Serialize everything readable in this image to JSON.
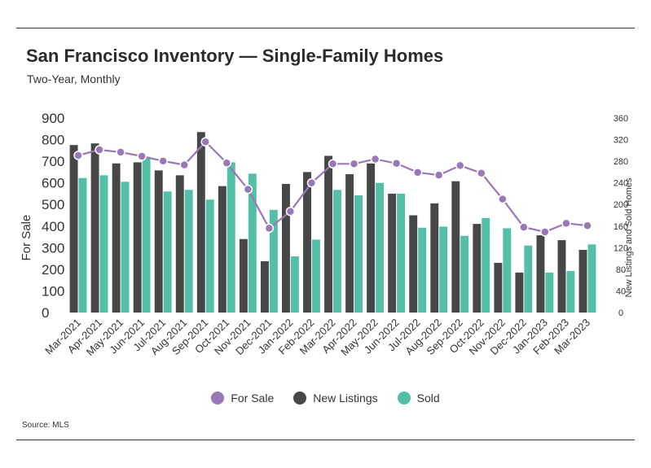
{
  "header": {
    "title": "San Francisco Inventory — Single-Family Homes",
    "subtitle": "Two-Year, Monthly"
  },
  "footer": {
    "source": "Source: MLS"
  },
  "colors": {
    "for_sale": "#9a77b5",
    "new_listings": "#474747",
    "sold": "#54bfa7"
  },
  "chart_data": {
    "type": "bar",
    "categories": [
      "Mar-2021",
      "Apr-2021",
      "May-2021",
      "Jun-2021",
      "Jul-2021",
      "Aug-2021",
      "Sep-2021",
      "Oct-2021",
      "Nov-2021",
      "Dec-2021",
      "Jan-2022",
      "Feb-2022",
      "Mar-2022",
      "Apr-2022",
      "May-2022",
      "Jun-2022",
      "Jul-2022",
      "Aug-2022",
      "Sep-2022",
      "Oct-2022",
      "Nov-2022",
      "Dec-2022",
      "Jan-2023",
      "Feb-2023",
      "Mar-2023"
    ],
    "series": [
      {
        "name": "For Sale",
        "type": "line",
        "axis": "left",
        "values": [
          727,
          753,
          742,
          723,
          701,
          683,
          790,
          692,
          570,
          390,
          468,
          600,
          688,
          688,
          710,
          690,
          648,
          636,
          680,
          645,
          525,
          395,
          373,
          413,
          402
        ]
      },
      {
        "name": "New Listings",
        "type": "bar",
        "axis": "right",
        "values": [
          310,
          313,
          276,
          278,
          263,
          254,
          334,
          234,
          136,
          95,
          238,
          260,
          290,
          256,
          276,
          220,
          180,
          202,
          243,
          164,
          92,
          74,
          143,
          134,
          116
        ]
      },
      {
        "name": "Sold",
        "type": "bar",
        "axis": "right",
        "values": [
          249,
          254,
          242,
          288,
          224,
          227,
          209,
          278,
          257,
          190,
          104,
          135,
          227,
          217,
          240,
          220,
          157,
          159,
          142,
          175,
          156,
          124,
          74,
          77,
          126
        ]
      }
    ],
    "left_axis": {
      "label": "For Sale",
      "ylim": [
        0,
        900
      ],
      "ticks": [
        "0",
        "100",
        "200",
        "300",
        "400",
        "500",
        "600",
        "700",
        "800",
        "900"
      ]
    },
    "right_axis": {
      "label": "New Listings and Sold Homes",
      "ylim": [
        0,
        360
      ],
      "ticks": [
        "0",
        "40",
        "80",
        "120",
        "160",
        "200",
        "240",
        "280",
        "320",
        "360"
      ]
    },
    "grid": false,
    "legend": "bottom-center"
  }
}
